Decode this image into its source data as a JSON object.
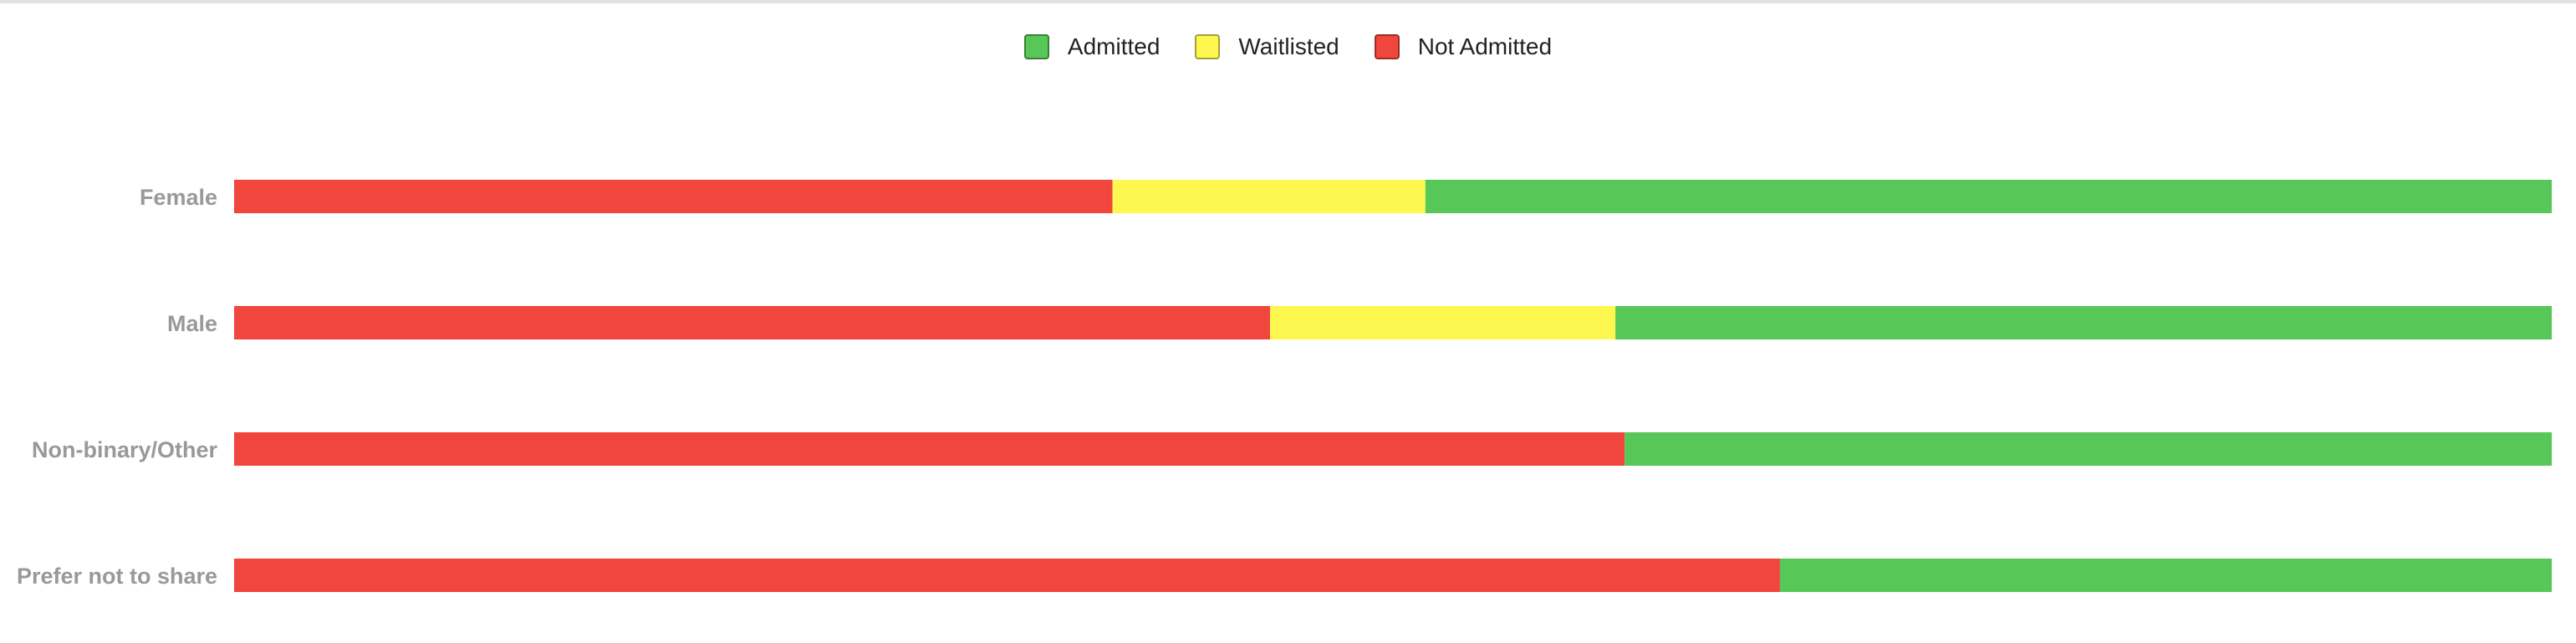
{
  "chart_data": {
    "type": "bar",
    "orientation": "horizontal",
    "stacked": true,
    "normalized_percent": true,
    "legend_position": "top-center",
    "grid": false,
    "categories": [
      "Female",
      "Male",
      "Non-binary/Other",
      "Prefer not to share"
    ],
    "stack_order": [
      "Not Admitted",
      "Waitlisted",
      "Admitted"
    ],
    "series": [
      {
        "name": "Admitted",
        "color": "#57c757",
        "values": [
          48.6,
          40.4,
          40.0,
          33.3
        ]
      },
      {
        "name": "Waitlisted",
        "color": "#fef750",
        "values": [
          13.5,
          14.9,
          0,
          0
        ]
      },
      {
        "name": "Not Admitted",
        "color": "#f0463d",
        "values": [
          37.9,
          44.7,
          60.0,
          66.7
        ]
      }
    ],
    "xlim": [
      0,
      100
    ]
  }
}
